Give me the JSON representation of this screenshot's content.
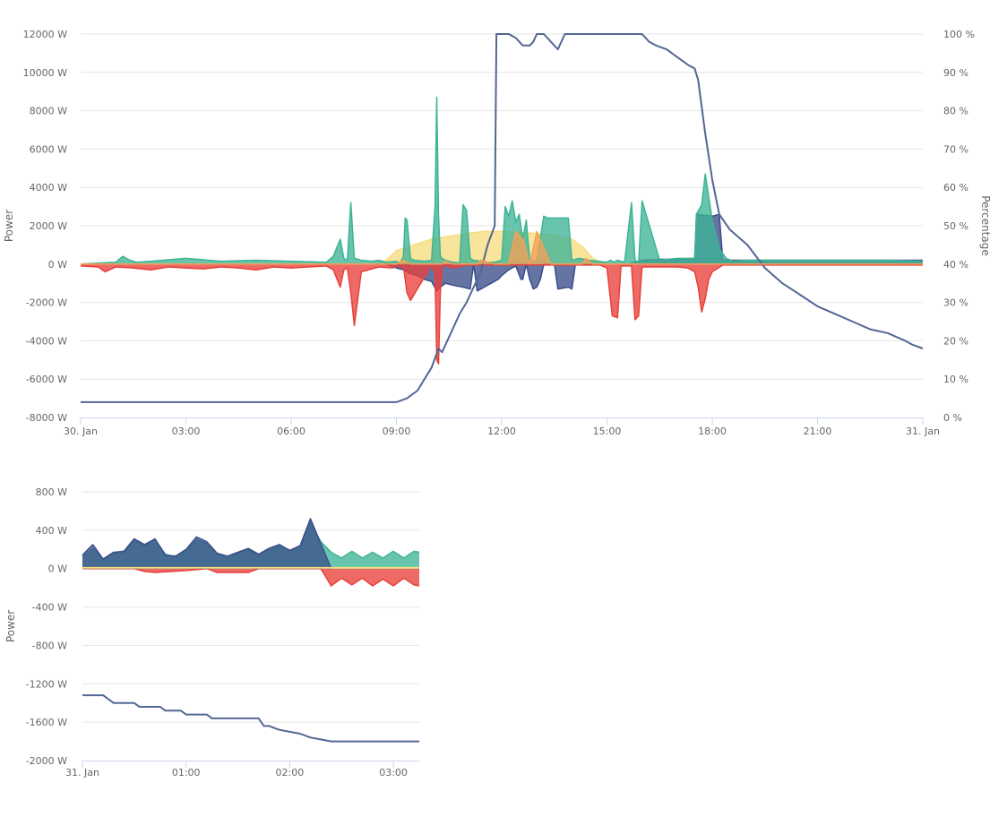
{
  "colors": {
    "grid": "#e6e6e6",
    "axis_line": "#ccd6eb",
    "grid_power": "#3b4d8a",
    "grid_export": "#e8403b",
    "solar": "#f7dd7f",
    "consumption": "#3db496",
    "battery_soc": "#536794",
    "orange": "#f2a15a"
  },
  "chart_data": [
    {
      "type": "area",
      "ylabel": "Power",
      "y2label": "Percentage",
      "ylim": [
        -8000,
        12000
      ],
      "y2lim": [
        0,
        100
      ],
      "xlim": [
        0,
        24
      ],
      "y_ticks": [
        -8000,
        -6000,
        -4000,
        -2000,
        0,
        2000,
        4000,
        6000,
        8000,
        10000,
        12000
      ],
      "y_tick_labels": [
        "-8000 W",
        "-6000 W",
        "-4000 W",
        "-2000 W",
        "0 W",
        "2000 W",
        "4000 W",
        "6000 W",
        "8000 W",
        "10000 W",
        "12000 W"
      ],
      "y2_ticks": [
        0,
        10,
        20,
        30,
        40,
        50,
        60,
        70,
        80,
        90,
        100
      ],
      "y2_tick_labels": [
        "0 %",
        "10 %",
        "20 %",
        "30 %",
        "40 %",
        "50 %",
        "60 %",
        "70 %",
        "80 %",
        "90 %",
        "100 %"
      ],
      "x_ticks": [
        0,
        3,
        6,
        9,
        12,
        15,
        18,
        21,
        24
      ],
      "x_tick_labels": [
        "30. Jan",
        "03:00",
        "06:00",
        "09:00",
        "12:00",
        "15:00",
        "18:00",
        "21:00",
        "31. Jan"
      ],
      "series": [
        {
          "type": "area",
          "axis": "power",
          "color": "#f7dd7f",
          "x": [
            0,
            8.4,
            8.7,
            9.0,
            9.5,
            10.0,
            10.5,
            11.0,
            11.5,
            12.0,
            12.5,
            13.0,
            13.5,
            14.0,
            14.3,
            14.6,
            15.0,
            24
          ],
          "y": [
            0,
            0,
            200,
            700,
            1000,
            1300,
            1450,
            1600,
            1700,
            1700,
            1650,
            1600,
            1500,
            1300,
            900,
            300,
            0,
            0
          ]
        },
        {
          "type": "area",
          "axis": "power",
          "color": "#3b4d8a",
          "x": [
            0,
            8.7,
            9.0,
            9.2,
            9.4,
            9.6,
            9.8,
            10.0,
            10.15,
            10.25,
            10.4,
            10.6,
            10.9,
            11.1,
            11.2,
            11.3,
            11.6,
            11.9,
            12.0,
            12.2,
            12.4,
            12.55,
            12.6,
            12.7,
            12.8,
            12.9,
            13.0,
            13.1,
            13.2,
            13.3,
            13.5,
            13.6,
            13.9,
            14.0,
            14.1,
            14.3,
            15.6,
            15.8,
            16.0,
            16.5,
            17.0,
            17.5,
            17.55,
            18.0,
            18.2,
            18.3,
            18.5,
            24
          ],
          "y": [
            0,
            0,
            -200,
            -300,
            -500,
            -600,
            -800,
            -900,
            -1400,
            -1200,
            -1000,
            -1100,
            -1200,
            -1300,
            0,
            -1400,
            -1100,
            -800,
            -600,
            -300,
            -100,
            -800,
            -800,
            0,
            -800,
            -1300,
            -1200,
            -800,
            0,
            0,
            0,
            -1300,
            -1200,
            -1300,
            0,
            0,
            0,
            100,
            200,
            250,
            250,
            300,
            2600,
            2500,
            2600,
            200,
            200,
            200
          ]
        },
        {
          "type": "area",
          "axis": "power",
          "color": "#e8403b",
          "x": [
            0,
            0.5,
            0.7,
            1.0,
            1.5,
            2.0,
            2.5,
            3.0,
            3.5,
            4.0,
            4.5,
            5.0,
            5.5,
            6.0,
            6.5,
            7.0,
            7.2,
            7.4,
            7.5,
            7.6,
            7.7,
            7.8,
            8.0,
            8.5,
            8.9,
            9.0,
            9.1,
            9.2,
            9.3,
            9.4,
            10.0,
            10.1,
            10.15,
            10.2,
            10.25,
            10.3,
            10.4,
            10.6,
            11.0,
            14.8,
            15.0,
            15.15,
            15.3,
            15.4,
            15.7,
            15.8,
            15.9,
            16.0,
            16.5,
            17.0,
            17.3,
            17.5,
            17.6,
            17.7,
            17.8,
            17.9,
            18.0,
            18.3,
            24
          ],
          "y": [
            -100,
            -150,
            -400,
            -150,
            -200,
            -300,
            -150,
            -200,
            -250,
            -150,
            -200,
            -300,
            -150,
            -200,
            -150,
            -100,
            -300,
            -1200,
            -300,
            -200,
            -1500,
            -3200,
            -400,
            -150,
            -200,
            -50,
            -200,
            -100,
            -1500,
            -1900,
            -50,
            -500,
            -5000,
            -5200,
            -1500,
            -200,
            -50,
            -200,
            -50,
            -50,
            -200,
            -2700,
            -2800,
            -100,
            -100,
            -2900,
            -2700,
            -150,
            -150,
            -150,
            -200,
            -400,
            -1200,
            -2500,
            -1800,
            -800,
            -400,
            -50,
            -50
          ]
        },
        {
          "type": "area",
          "axis": "power",
          "color": "#3db496",
          "x": [
            0,
            1.0,
            1.2,
            1.4,
            1.6,
            2.0,
            3.0,
            4.0,
            5.0,
            6.0,
            7.0,
            7.2,
            7.4,
            7.5,
            7.6,
            7.7,
            7.8,
            8.0,
            8.3,
            8.5,
            8.7,
            9.0,
            9.1,
            9.2,
            9.25,
            9.3,
            9.4,
            9.5,
            9.8,
            10.0,
            10.1,
            10.15,
            10.2,
            10.25,
            10.3,
            10.4,
            10.6,
            10.8,
            10.9,
            11.0,
            11.1,
            11.2,
            11.4,
            11.6,
            11.8,
            12.0,
            12.1,
            12.2,
            12.3,
            12.4,
            12.5,
            12.6,
            12.7,
            12.8,
            13.0,
            13.2,
            13.3,
            13.5,
            13.9,
            14.0,
            14.2,
            14.5,
            15.0,
            15.1,
            15.2,
            15.3,
            15.5,
            15.7,
            15.8,
            15.9,
            16.0,
            16.5,
            17.0,
            17.5,
            17.55,
            17.7,
            17.8,
            18.0,
            18.2,
            18.4,
            18.6,
            19.0,
            20.0,
            21.0,
            22.0,
            23.0,
            24
          ],
          "y": [
            0,
            100,
            400,
            200,
            100,
            150,
            300,
            150,
            200,
            150,
            100,
            400,
            1300,
            300,
            200,
            3200,
            300,
            200,
            150,
            200,
            100,
            150,
            50,
            400,
            2400,
            2300,
            300,
            200,
            150,
            200,
            3000,
            8700,
            2500,
            400,
            300,
            200,
            100,
            50,
            3100,
            2800,
            300,
            200,
            150,
            100,
            100,
            200,
            3000,
            2500,
            3300,
            2200,
            2600,
            1300,
            2300,
            200,
            200,
            2500,
            2400,
            2400,
            2400,
            200,
            300,
            200,
            100,
            200,
            100,
            200,
            100,
            3200,
            200,
            100,
            3300,
            200,
            300,
            300,
            2600,
            3100,
            4700,
            2300,
            800,
            300,
            150,
            200,
            200,
            200,
            200,
            200,
            150
          ]
        },
        {
          "type": "line",
          "axis": "percentage",
          "color": "#536794",
          "x": [
            0,
            9.0,
            9.3,
            9.6,
            9.8,
            10.0,
            10.2,
            10.3,
            10.4,
            10.6,
            10.8,
            11.0,
            11.2,
            11.4,
            11.6,
            11.8,
            11.85,
            12.0,
            12.2,
            12.4,
            12.6,
            12.8,
            12.9,
            13.0,
            13.2,
            13.4,
            13.6,
            13.8,
            14.0,
            14.2,
            14.5,
            15.0,
            15.5,
            16.0,
            16.2,
            16.4,
            16.7,
            17.0,
            17.3,
            17.5,
            17.6,
            17.8,
            18.0,
            18.2,
            18.5,
            19.0,
            19.5,
            20.0,
            20.5,
            21.0,
            21.5,
            22.0,
            22.5,
            23.0,
            23.5,
            23.7,
            24
          ],
          "y": [
            4,
            4,
            5,
            7,
            10,
            13,
            18,
            17,
            19,
            23,
            27,
            30,
            34,
            38,
            45,
            50,
            100,
            100,
            100,
            99,
            97,
            97,
            98,
            100,
            100,
            98,
            96,
            100,
            100,
            100,
            100,
            100,
            100,
            100,
            98,
            97,
            96,
            94,
            92,
            91,
            88,
            74,
            62,
            53,
            49,
            45,
            39,
            35,
            32,
            29,
            27,
            25,
            23,
            22,
            20,
            19,
            18
          ]
        },
        {
          "type": "area",
          "axis": "power",
          "color": "#f2a15a",
          "x": [
            0,
            9.0,
            9.2,
            9.4,
            10.3,
            10.4,
            10.6,
            11.3,
            11.4,
            11.8,
            12.2,
            12.4,
            12.6,
            12.8,
            13.0,
            13.4,
            13.6,
            14.3,
            14.4,
            14.6,
            15.0,
            24
          ],
          "y": [
            0,
            0,
            200,
            0,
            0,
            150,
            0,
            0,
            200,
            0,
            0,
            1700,
            1300,
            0,
            1700,
            0,
            0,
            0,
            300,
            0,
            0,
            0
          ]
        }
      ]
    },
    {
      "type": "area",
      "ylabel": "Power",
      "ylim": [
        -2000,
        800
      ],
      "xlim": [
        0,
        3.25
      ],
      "y_ticks": [
        -2000,
        -1600,
        -1200,
        -800,
        -400,
        0,
        400,
        800
      ],
      "y_tick_labels": [
        "-2000 W",
        "-1600 W",
        "-1200 W",
        "-800 W",
        "-400 W",
        "0 W",
        "400 W",
        "800 W"
      ],
      "x_ticks": [
        0,
        1,
        2,
        3
      ],
      "x_tick_labels": [
        "31. Jan",
        "01:00",
        "02:00",
        "03:00"
      ],
      "series": [
        {
          "type": "area",
          "axis": "power",
          "color": "#e8403b",
          "x": [
            0,
            0.5,
            0.6,
            0.7,
            1.0,
            1.2,
            1.3,
            1.6,
            1.7,
            2.0,
            2.3,
            2.4,
            2.5,
            2.6,
            2.7,
            2.8,
            2.9,
            3.0,
            3.1,
            3.2,
            3.25
          ],
          "y": [
            0,
            0,
            -30,
            -40,
            -20,
            0,
            -40,
            -40,
            0,
            0,
            0,
            -180,
            -100,
            -170,
            -100,
            -180,
            -110,
            -180,
            -100,
            -170,
            -180
          ]
        },
        {
          "type": "area",
          "axis": "power",
          "color": "#3db496",
          "x": [
            0,
            0.1,
            0.2,
            0.3,
            0.4,
            0.5,
            0.6,
            0.7,
            0.8,
            0.9,
            1.0,
            1.1,
            1.2,
            1.3,
            1.4,
            1.5,
            1.6,
            1.7,
            1.8,
            1.9,
            2.0,
            2.1,
            2.2,
            2.3,
            2.4,
            2.5,
            2.6,
            2.7,
            2.8,
            2.9,
            3.0,
            3.1,
            3.2,
            3.25
          ],
          "y": [
            120,
            210,
            100,
            160,
            170,
            300,
            240,
            300,
            150,
            120,
            180,
            300,
            260,
            150,
            110,
            160,
            200,
            140,
            210,
            250,
            190,
            230,
            480,
            280,
            170,
            110,
            180,
            110,
            170,
            110,
            180,
            110,
            180,
            170
          ]
        },
        {
          "type": "area",
          "axis": "power",
          "color": "#3b4d8a",
          "opacity": 0.75,
          "x": [
            0,
            0.1,
            0.2,
            0.3,
            0.4,
            0.5,
            0.6,
            0.7,
            0.8,
            0.9,
            1.0,
            1.1,
            1.2,
            1.3,
            1.4,
            1.5,
            1.6,
            1.7,
            1.8,
            1.9,
            2.0,
            2.1,
            2.2,
            2.3,
            2.4
          ],
          "y": [
            140,
            250,
            100,
            170,
            180,
            310,
            250,
            310,
            140,
            130,
            200,
            330,
            280,
            160,
            130,
            170,
            210,
            150,
            210,
            250,
            190,
            240,
            520,
            260,
            0
          ]
        },
        {
          "type": "area",
          "axis": "power",
          "color": "#f7dd7f",
          "x": [
            0,
            3.25
          ],
          "y": [
            10,
            10
          ]
        },
        {
          "type": "line",
          "axis": "power",
          "color": "#536794",
          "x": [
            0,
            0.2,
            0.3,
            0.5,
            0.55,
            0.75,
            0.8,
            0.95,
            1.0,
            1.2,
            1.25,
            1.4,
            1.45,
            1.7,
            1.75,
            1.8,
            1.9,
            2.0,
            2.1,
            2.2,
            2.3,
            2.4,
            3.25
          ],
          "y": [
            -1320,
            -1320,
            -1400,
            -1400,
            -1440,
            -1440,
            -1480,
            -1480,
            -1520,
            -1520,
            -1560,
            -1560,
            -1560,
            -1560,
            -1640,
            -1640,
            -1680,
            -1700,
            -1720,
            -1760,
            -1780,
            -1800,
            -1800
          ]
        }
      ]
    }
  ]
}
